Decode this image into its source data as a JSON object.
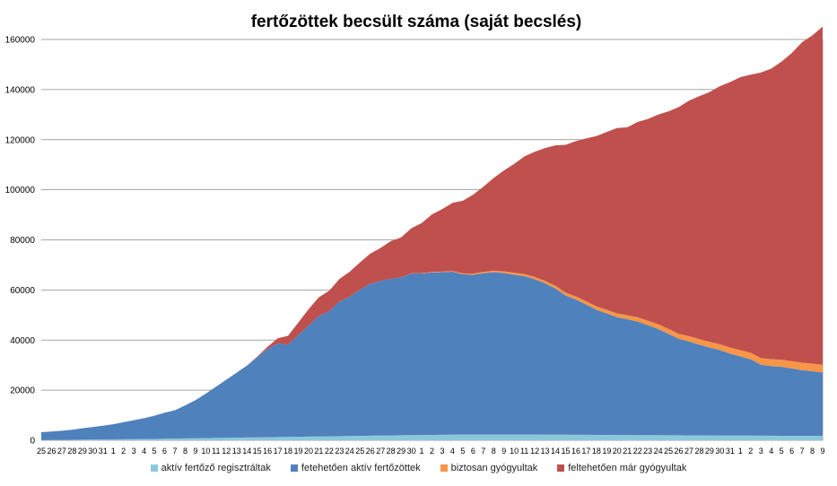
{
  "chart_data": {
    "type": "area",
    "stacked": true,
    "title": "fertőzöttek becsült száma (saját becslés)",
    "ylim": [
      0,
      160000
    ],
    "yticks": [
      0,
      20000,
      40000,
      60000,
      80000,
      100000,
      120000,
      140000,
      160000
    ],
    "grid": true,
    "legend_position": "bottom",
    "x": [
      "25",
      "26",
      "27",
      "28",
      "29",
      "30",
      "31",
      "1",
      "2",
      "3",
      "4",
      "5",
      "6",
      "7",
      "8",
      "9",
      "10",
      "11",
      "12",
      "13",
      "14",
      "15",
      "16",
      "17",
      "18",
      "19",
      "20",
      "21",
      "22",
      "23",
      "24",
      "25",
      "26",
      "27",
      "28",
      "29",
      "30",
      "1",
      "2",
      "3",
      "4",
      "5",
      "6",
      "7",
      "8",
      "9",
      "10",
      "11",
      "12",
      "13",
      "14",
      "15",
      "16",
      "17",
      "18",
      "19",
      "20",
      "21",
      "22",
      "23",
      "24",
      "25",
      "26",
      "27",
      "28",
      "29",
      "30",
      "31",
      "1",
      "2",
      "3",
      "4",
      "5",
      "6",
      "7",
      "8",
      "9"
    ],
    "series": [
      {
        "name": "aktív fertőző regisztráltak",
        "color": "#8CC8DC",
        "values": [
          100,
          120,
          150,
          180,
          220,
          260,
          300,
          350,
          400,
          450,
          500,
          560,
          620,
          680,
          740,
          800,
          860,
          920,
          980,
          1040,
          1100,
          1160,
          1220,
          1280,
          1340,
          1400,
          1460,
          1520,
          1580,
          1640,
          1700,
          1760,
          1820,
          1880,
          1940,
          2000,
          2050,
          2100,
          2150,
          2200,
          2250,
          2280,
          2300,
          2300,
          2300,
          2300,
          2300,
          2300,
          2280,
          2260,
          2240,
          2220,
          2200,
          2180,
          2160,
          2140,
          2120,
          2100,
          2080,
          2060,
          2040,
          2020,
          2000,
          1980,
          1960,
          1940,
          1920,
          1900,
          1880,
          1860,
          1840,
          1820,
          1800,
          1780,
          1760,
          1740,
          1720
        ]
      },
      {
        "name": "fetehetően aktív fertőzöttek",
        "color": "#4F81BD",
        "values": [
          3100,
          3380,
          3650,
          4020,
          4580,
          5040,
          5500,
          6050,
          6800,
          7550,
          8300,
          9240,
          10380,
          11320,
          13160,
          15200,
          17740,
          20480,
          23220,
          25960,
          28700,
          31940,
          35180,
          37420,
          36860,
          40600,
          44340,
          48080,
          49920,
          53760,
          55600,
          58440,
          60580,
          61720,
          62560,
          63000,
          64550,
          64500,
          64850,
          64900,
          65050,
          64000,
          63800,
          64400,
          64800,
          64450,
          63800,
          63200,
          62000,
          60400,
          58400,
          55600,
          54000,
          52000,
          49900,
          48500,
          47000,
          46200,
          45300,
          43900,
          42400,
          40500,
          38500,
          37500,
          36200,
          35100,
          34100,
          32700,
          31600,
          30500,
          28300,
          27800,
          27500,
          26900,
          26200,
          25800,
          25300
        ]
      },
      {
        "name": "biztosan gyógyultak",
        "color": "#F79646",
        "values": [
          0,
          0,
          0,
          0,
          0,
          0,
          0,
          0,
          0,
          0,
          0,
          0,
          0,
          0,
          0,
          0,
          0,
          0,
          0,
          0,
          0,
          0,
          0,
          0,
          0,
          0,
          0,
          0,
          0,
          0,
          0,
          0,
          0,
          0,
          0,
          0,
          50,
          100,
          160,
          220,
          280,
          350,
          420,
          500,
          580,
          660,
          740,
          820,
          900,
          980,
          1060,
          1140,
          1220,
          1300,
          1380,
          1460,
          1540,
          1620,
          1700,
          1780,
          1860,
          1940,
          2020,
          2100,
          2180,
          2260,
          2340,
          2420,
          2500,
          2580,
          2660,
          2740,
          2820,
          2900,
          2980,
          3060,
          3140
        ]
      },
      {
        "name": "feltehetően már gyógyultak",
        "color": "#C0504D",
        "values": [
          0,
          0,
          0,
          0,
          0,
          0,
          0,
          0,
          0,
          0,
          0,
          0,
          0,
          0,
          0,
          0,
          0,
          0,
          0,
          0,
          0,
          300,
          900,
          2000,
          3500,
          5000,
          6500,
          7500,
          8200,
          9000,
          10000,
          10800,
          12100,
          13200,
          15000,
          16000,
          18000,
          20000,
          23000,
          25000,
          27200,
          29000,
          31500,
          34000,
          37000,
          40300,
          43500,
          47000,
          50000,
          53000,
          56000,
          59000,
          62000,
          65000,
          68000,
          71000,
          74000,
          75000,
          78000,
          80500,
          83700,
          86800,
          90500,
          94000,
          97000,
          99700,
          103000,
          106000,
          109000,
          111000,
          114000,
          116000,
          119000,
          123000,
          128000,
          131000,
          135000
        ]
      }
    ]
  }
}
